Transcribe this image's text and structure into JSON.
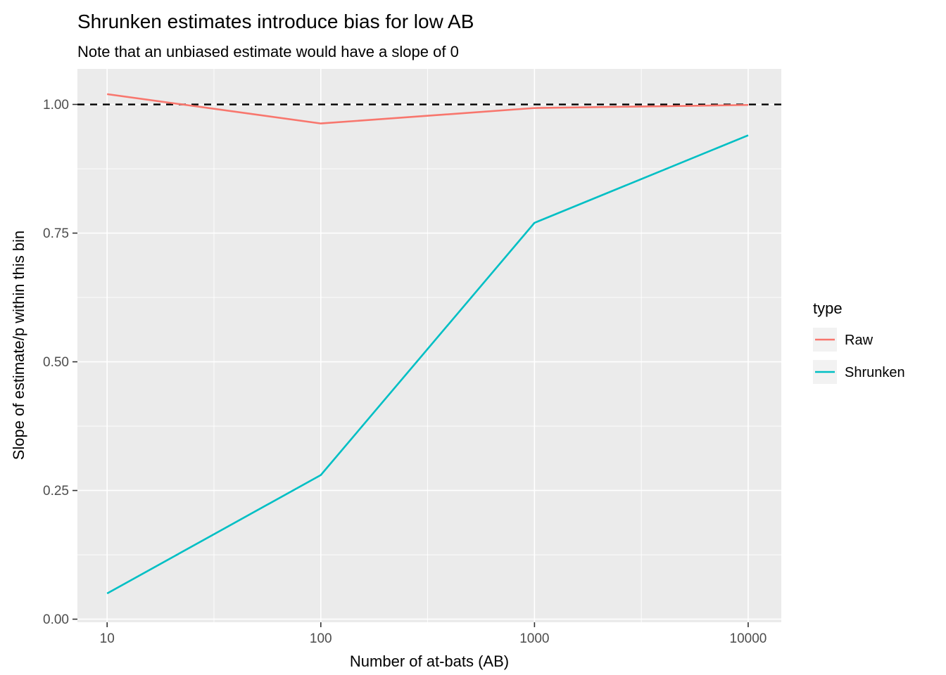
{
  "chart_data": {
    "type": "line",
    "title": "Shrunken estimates introduce bias for low AB",
    "subtitle": "Note that an unbiased estimate would have a slope of 0",
    "xlabel": "Number of at-bats (AB)",
    "ylabel": "Slope of estimate/p within this bin",
    "x_scale": "log10",
    "x": [
      10,
      100,
      1000,
      10000
    ],
    "series": [
      {
        "name": "Raw",
        "color": "#F8766D",
        "values": [
          1.02,
          0.963,
          0.993,
          0.999
        ]
      },
      {
        "name": "Shrunken",
        "color": "#00BFC4",
        "values": [
          0.05,
          0.28,
          0.77,
          0.94
        ]
      }
    ],
    "reference_line": {
      "y": 1.0,
      "style": "dashed",
      "color": "#000000"
    },
    "xticks": {
      "values": [
        10,
        100,
        1000,
        10000
      ],
      "labels": [
        "10",
        "100",
        "1000",
        "10000"
      ]
    },
    "yticks": {
      "values": [
        0,
        0.25,
        0.5,
        0.75,
        1.0
      ],
      "labels": [
        "0.00",
        "0.25",
        "0.50",
        "0.75",
        "1.00"
      ]
    },
    "xlim_log10": [
      0.861,
      4.155
    ],
    "ylim": [
      -0.006,
      1.069
    ],
    "x_minor_log10": [
      1.5,
      2.5,
      3.5
    ],
    "y_minor": [
      0.125,
      0.375,
      0.625,
      0.875
    ],
    "grid": true,
    "panel_bg": "#EBEBEB",
    "grid_color": "#FFFFFF",
    "tick_label_color": "#4D4D4D",
    "tick_mark_color": "#333333",
    "legend": {
      "title": "type",
      "position": "right",
      "key_fill": "#F2F2F2",
      "entries": [
        {
          "label": "Raw",
          "color": "#F8766D"
        },
        {
          "label": "Shrunken",
          "color": "#00BFC4"
        }
      ]
    }
  }
}
